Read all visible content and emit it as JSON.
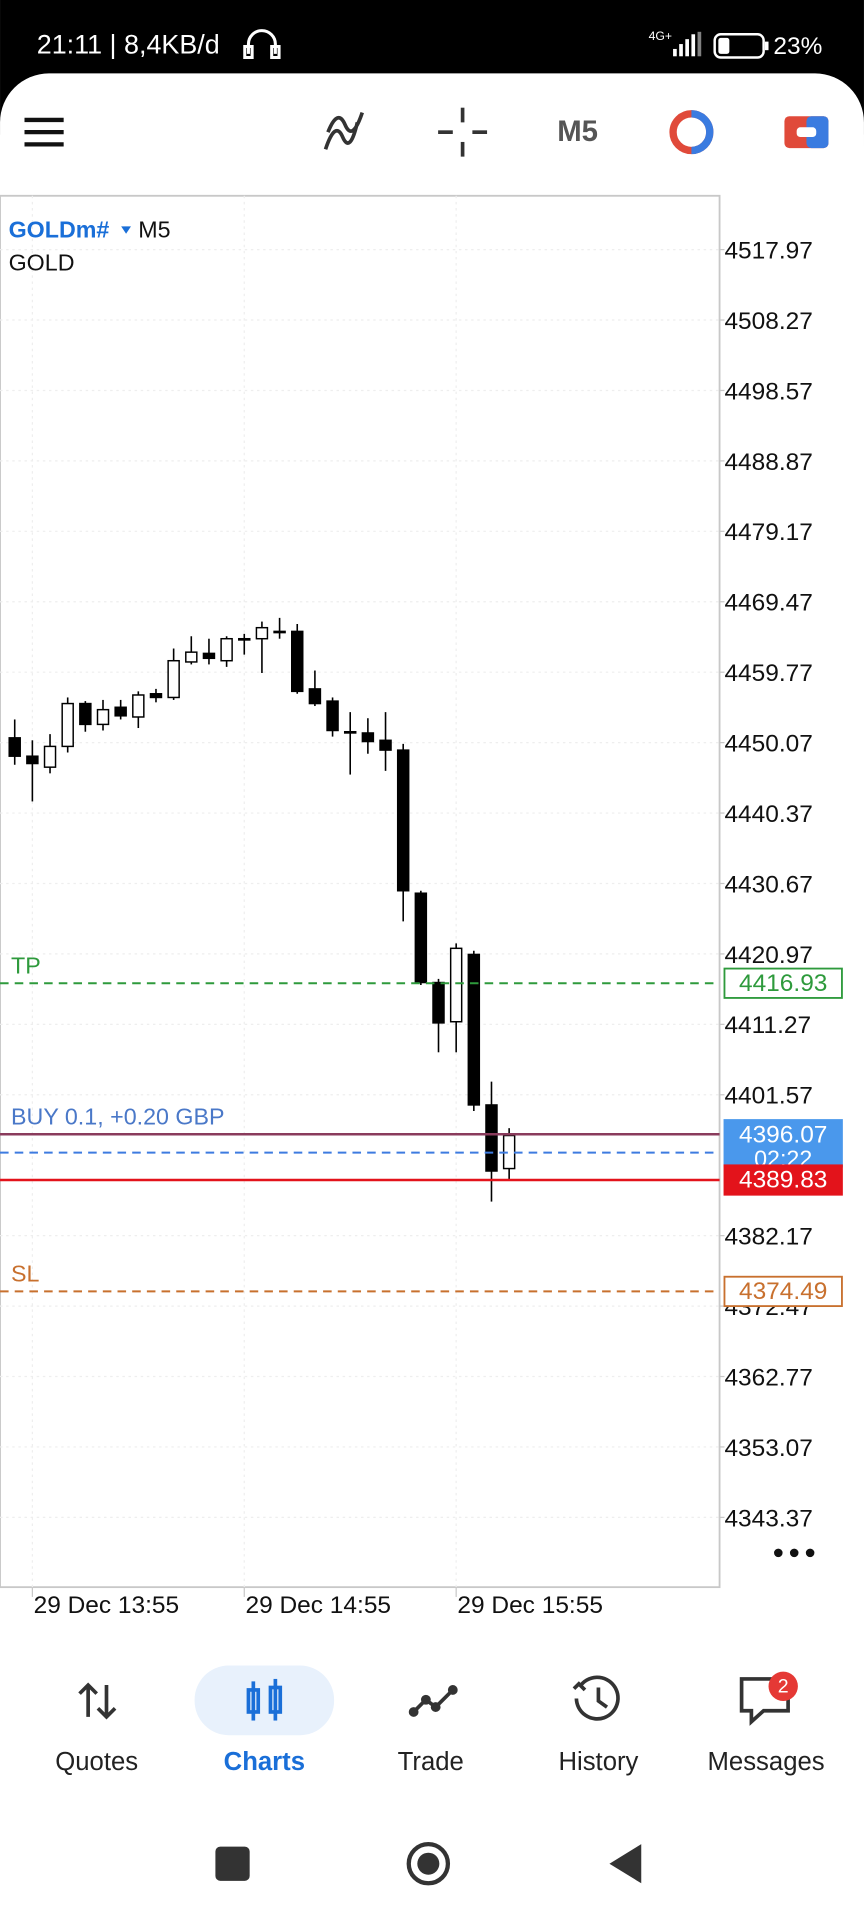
{
  "status_bar": {
    "text": "21:11 | 8,4KB/d",
    "network": "4G+",
    "battery": "23%"
  },
  "toolbar": {
    "timeframe": "M5"
  },
  "chart_data": {
    "type": "candlestick",
    "symbol": "GOLDm#",
    "timeframe": "M5",
    "description": "GOLD",
    "categories": [
      null,
      "29 Dec 13:55",
      null,
      null,
      null,
      null,
      null,
      null,
      null,
      null,
      null,
      null,
      null,
      "29 Dec 14:55",
      null,
      null,
      null,
      null,
      null,
      null,
      null,
      null,
      null,
      null,
      null,
      "29 Dec 15:55",
      null,
      null,
      null
    ],
    "open": [
      4450.73,
      4448.2,
      4446.69,
      4449.55,
      4455.45,
      4452.58,
      4454.94,
      4453.6,
      4456.8,
      4456.29,
      4461.18,
      4462.36,
      4461.35,
      4464.21,
      4464.38,
      4465.22,
      4465.39,
      4457.47,
      4455.79,
      4451.57,
      4451.4,
      4450.39,
      4449.04,
      4429.33,
      4417.03,
      4411.63,
      4420.9,
      4400.17,
      4391.41
    ],
    "high": [
      4453.26,
      4450.39,
      4451.24,
      4456.29,
      4455.79,
      4455.95,
      4455.95,
      4457.13,
      4457.47,
      4463.03,
      4464.72,
      4464.38,
      4464.72,
      4465.05,
      4466.74,
      4467.25,
      4466.4,
      4460.0,
      4456.29,
      4454.27,
      4453.43,
      4454.27,
      4449.89,
      4429.67,
      4417.53,
      4422.42,
      4421.41,
      4403.38,
      4396.97
    ],
    "low": [
      4447.02,
      4441.97,
      4445.84,
      4448.71,
      4451.57,
      4451.74,
      4453.26,
      4452.08,
      4455.62,
      4455.95,
      4460.84,
      4460.84,
      4460.5,
      4462.19,
      4459.66,
      4464.38,
      4456.8,
      4455.11,
      4450.9,
      4445.67,
      4448.54,
      4446.18,
      4425.45,
      4416.69,
      4407.42,
      4407.42,
      4399.33,
      4386.86,
      4389.73
    ],
    "close": [
      4448.2,
      4447.19,
      4449.55,
      4455.45,
      4452.58,
      4454.61,
      4453.76,
      4456.63,
      4456.29,
      4461.35,
      4462.53,
      4461.68,
      4464.38,
      4464.38,
      4465.9,
      4465.39,
      4457.13,
      4455.45,
      4451.74,
      4451.4,
      4450.22,
      4449.04,
      4429.67,
      4417.03,
      4411.47,
      4421.74,
      4400.17,
      4391.07,
      4395.96
    ],
    "up_color": "#ffffff",
    "down_color": "#000000",
    "ylim": [
      4333.76,
      4525.38
    ],
    "yticks": [
      4517.97,
      4508.27,
      4498.57,
      4488.87,
      4479.17,
      4469.47,
      4459.77,
      4450.07,
      4440.37,
      4430.67,
      4420.97,
      4411.27,
      4401.57,
      4382.17,
      4372.47,
      4362.77,
      4353.07,
      4343.37
    ],
    "grid": true,
    "levels": [
      {
        "label": "TP",
        "value": 4416.93,
        "color": "#2e9a3c",
        "style": "dashed",
        "box": "outline"
      },
      {
        "label": "BUY 0.1,  +0.20 GBP",
        "value": 4396.13,
        "color": "#8a3b5c",
        "label_color": "#4a78c8",
        "style": "solid"
      },
      {
        "value": 4393.6,
        "color": "#3d7be0",
        "style": "dashed"
      },
      {
        "value": 4396.07,
        "color": "#4a98ec",
        "box": "filled",
        "timer": "02:22"
      },
      {
        "value": 4389.83,
        "color": "#e3131b",
        "style": "solid",
        "box": "filled"
      },
      {
        "label": "SL",
        "value": 4374.49,
        "color": "#c8702e",
        "style": "dashed",
        "box": "outline"
      }
    ]
  },
  "bottom_nav": {
    "items": [
      "Quotes",
      "Charts",
      "Trade",
      "History",
      "Messages"
    ],
    "active": 1,
    "badge": "2"
  }
}
